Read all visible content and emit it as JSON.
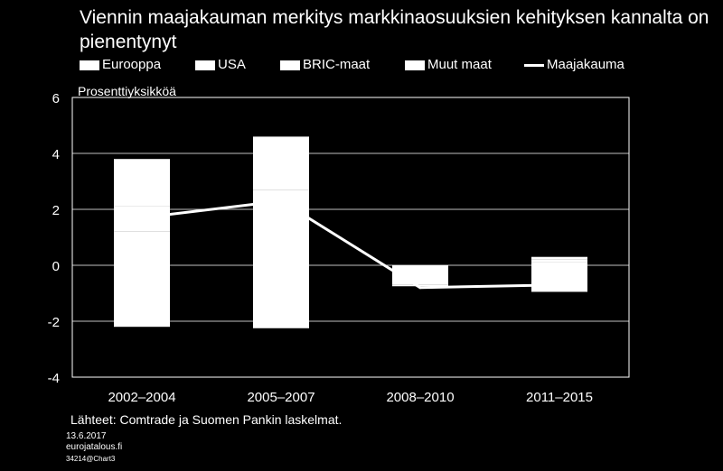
{
  "chart_data": {
    "type": "bar",
    "title": "Viennin maajakauman merkitys markkinaosuuksien kehityksen kannalta on pienentynyt",
    "ylabel": "Prosenttiyksikköä",
    "categories": [
      "2002–2004",
      "2005–2007",
      "2008–2010",
      "2011–2015"
    ],
    "ylim": [
      -4,
      6
    ],
    "yticks": [
      6,
      4,
      2,
      0,
      -2,
      -4
    ],
    "stacked": true,
    "series": [
      {
        "name": "Eurooppa",
        "kind": "bar",
        "values": [
          -2.2,
          -2.25,
          -0.7,
          -0.95
        ]
      },
      {
        "name": "USA",
        "kind": "bar",
        "values": [
          1.2,
          1.5,
          0.0,
          0.1
        ]
      },
      {
        "name": "BRIC-maat",
        "kind": "bar",
        "values": [
          0.9,
          1.2,
          -0.05,
          0.1
        ]
      },
      {
        "name": "Muut maat",
        "kind": "bar",
        "values": [
          1.7,
          1.9,
          0.0,
          0.1
        ]
      },
      {
        "name": "Maajakauma",
        "kind": "line",
        "values": [
          1.7,
          2.3,
          -0.8,
          -0.7
        ]
      }
    ],
    "grid": "horizontal",
    "legend": "top",
    "colors": {
      "background": "#000000",
      "bars": "#ffffff",
      "line": "#ffffff",
      "grid": "#ffffff"
    }
  },
  "source_note": "Lähteet: Comtrade ja Suomen Pankin laskelmat.",
  "footer": {
    "date": "13.6.2017",
    "site": "eurojatalous.fi",
    "code": "34214@Chart3"
  }
}
